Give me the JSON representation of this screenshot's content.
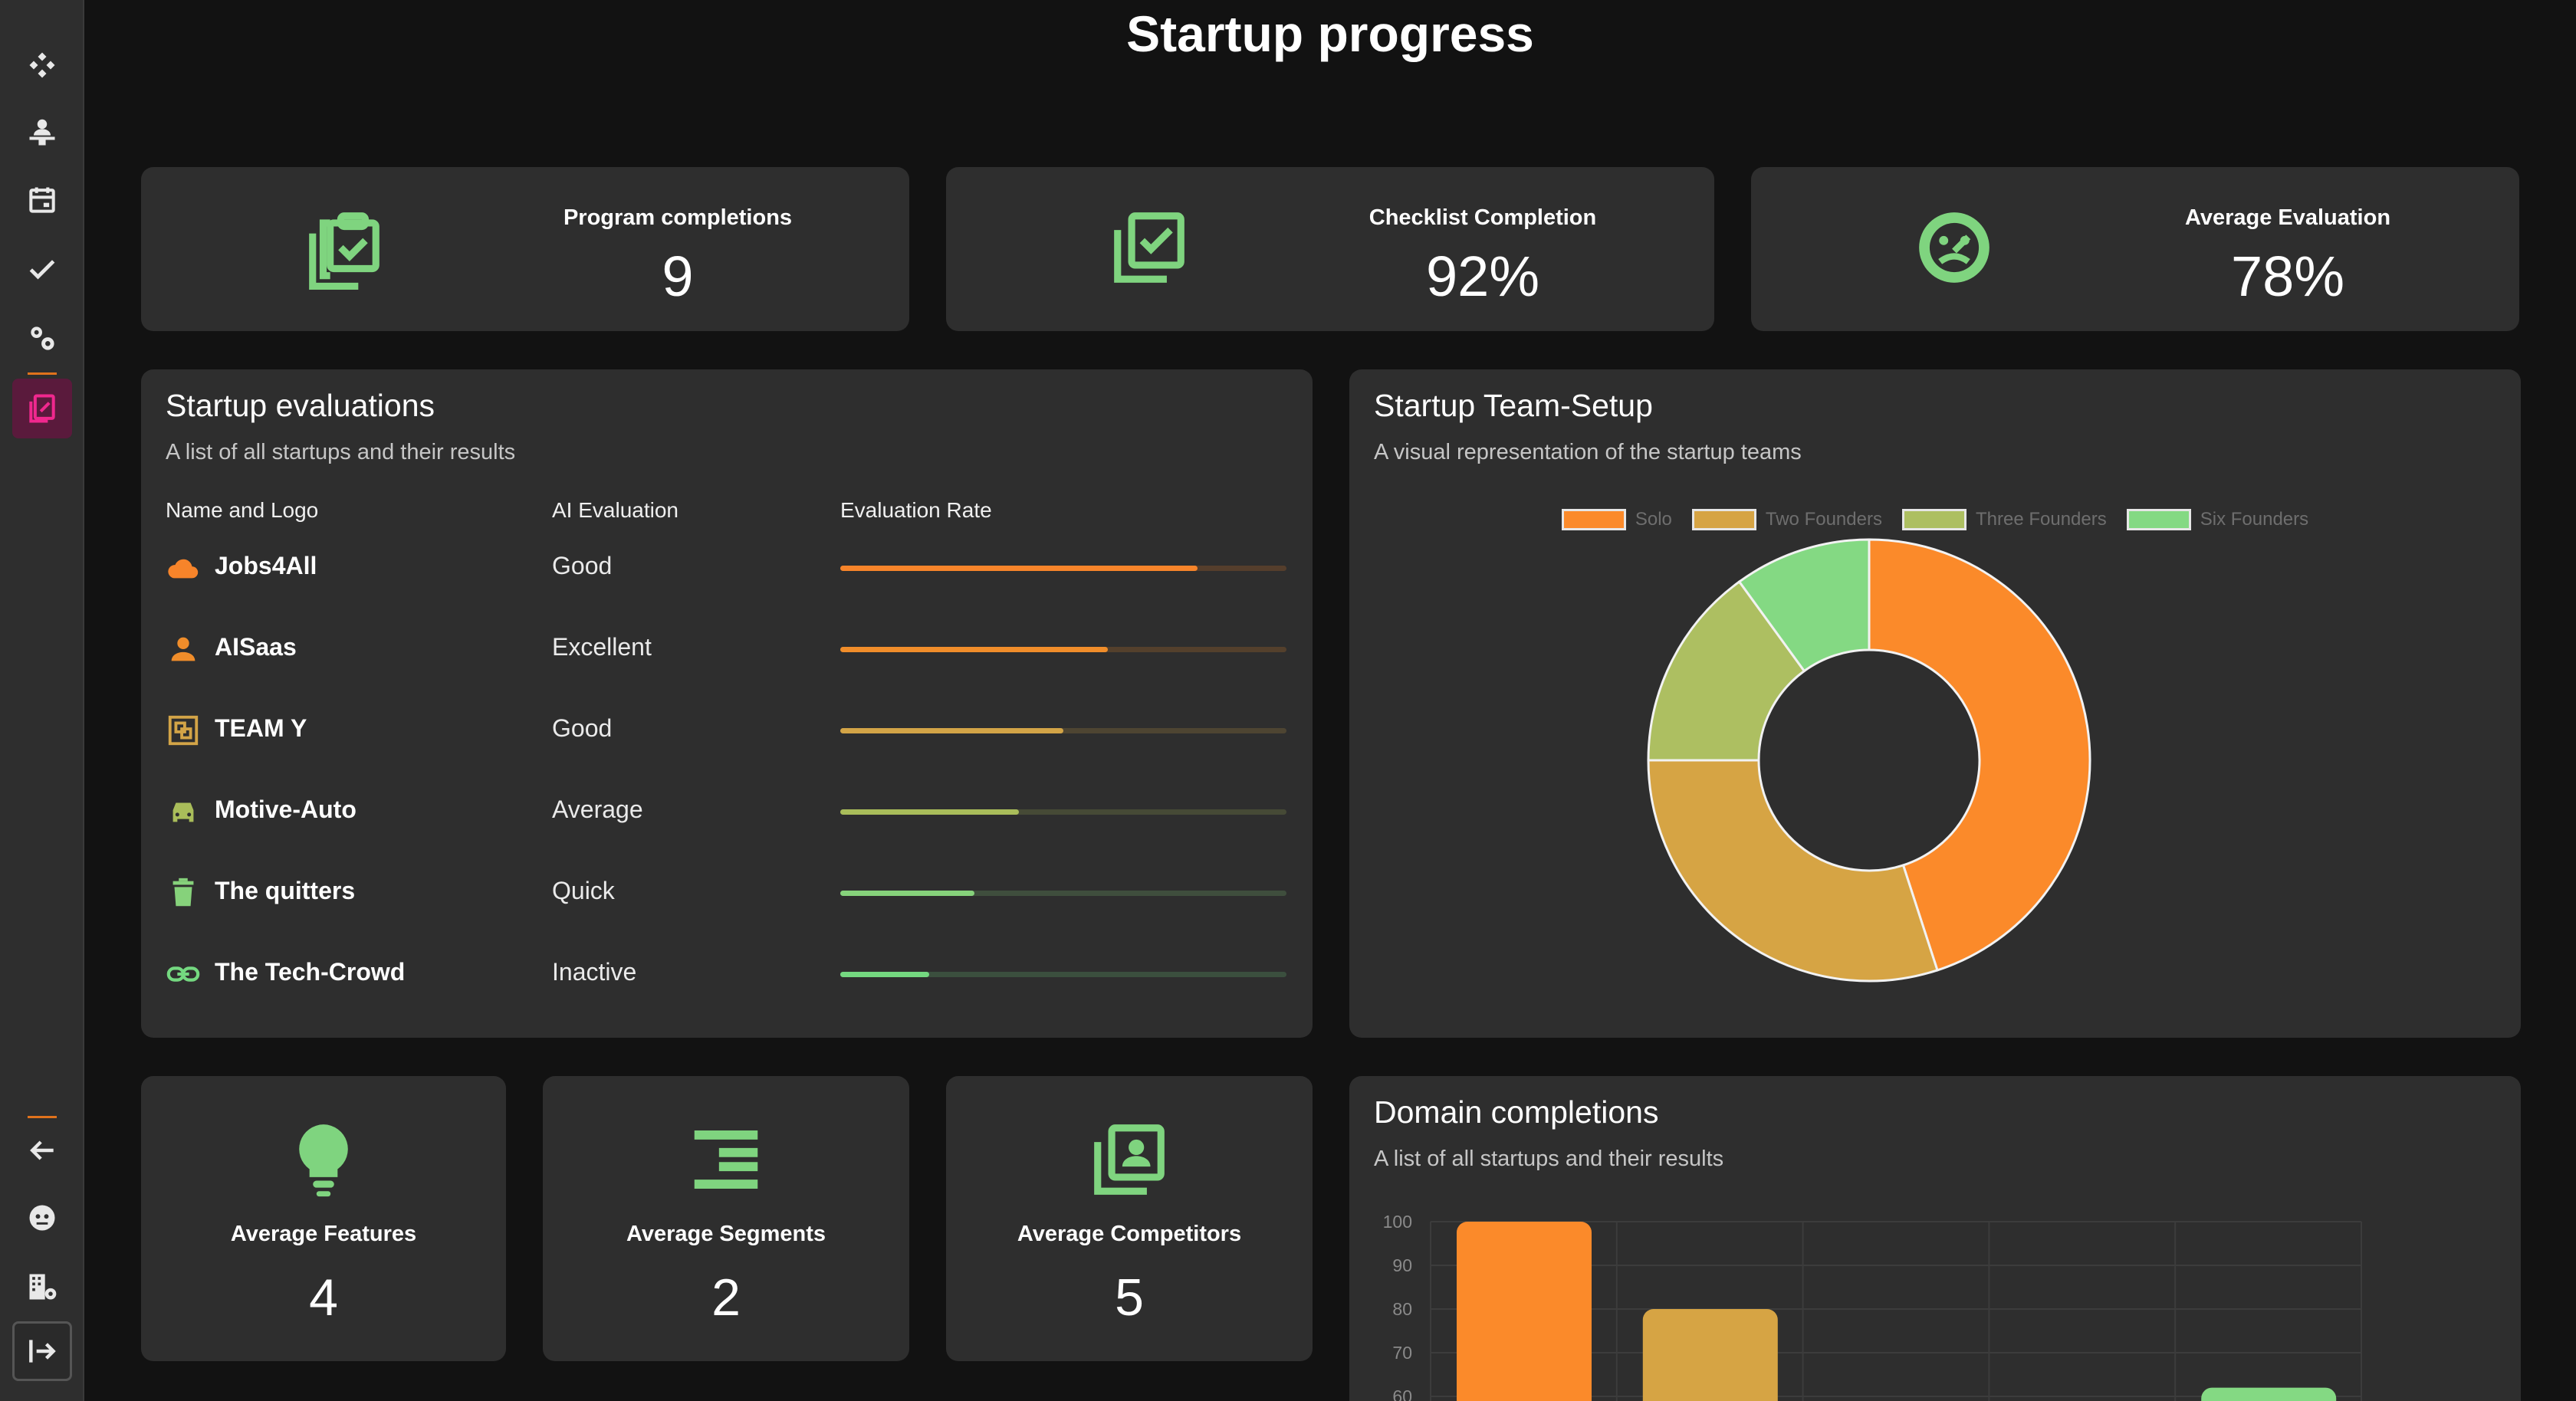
{
  "page": {
    "title": "Startup progress"
  },
  "sidebar": {
    "top_items": [
      {
        "icon": "diamonds-icon"
      },
      {
        "icon": "person-podium-icon"
      },
      {
        "icon": "calendar-icon"
      },
      {
        "icon": "checkmark-icon"
      },
      {
        "icon": "settings-gears-icon"
      },
      {
        "icon": "edit-document-icon",
        "active": true
      }
    ],
    "bottom_items": [
      {
        "icon": "arrow-left-icon"
      },
      {
        "icon": "face-icon"
      },
      {
        "icon": "building-gear-icon"
      },
      {
        "icon": "logout-icon"
      }
    ],
    "accent_color": "#e0721c",
    "active_color": "#e0288c"
  },
  "stats": [
    {
      "label": "Program completions",
      "value": "9",
      "icon": "clipboard-check-icon"
    },
    {
      "label": "Checklist Completion",
      "value": "92%",
      "icon": "checkbox-stack-icon"
    },
    {
      "label": "Average Evaluation",
      "value": "78%",
      "icon": "gauge-face-icon"
    }
  ],
  "evaluations": {
    "title": "Startup evaluations",
    "subtitle": "A list of all startups and their results",
    "columns": [
      "Name and Logo",
      "AI Evaluation",
      "Evaluation Rate"
    ],
    "rows": [
      {
        "name": "Jobs4All",
        "evaluation": "Good",
        "rate": 0.8,
        "color": "#f7842a",
        "icon": "cloud-icon"
      },
      {
        "name": "AISaas",
        "evaluation": "Excellent",
        "rate": 0.6,
        "color": "#f08d2a",
        "icon": "person-icon"
      },
      {
        "name": "TEAM Y",
        "evaluation": "Good",
        "rate": 0.5,
        "color": "#d3a447",
        "icon": "frames-icon"
      },
      {
        "name": "Motive-Auto",
        "evaluation": "Average",
        "rate": 0.4,
        "color": "#a9bd5a",
        "icon": "car-icon"
      },
      {
        "name": "The quitters",
        "evaluation": "Quick",
        "rate": 0.3,
        "color": "#86d27b",
        "icon": "trash-icon"
      },
      {
        "name": "The Tech-Crowd",
        "evaluation": "Inactive",
        "rate": 0.2,
        "color": "#74d880",
        "icon": "link-icon"
      }
    ]
  },
  "team_setup": {
    "title": "Startup Team-Setup",
    "subtitle": "A visual representation of the startup teams",
    "chart_data": {
      "type": "pie",
      "categories": [
        "Solo",
        "Two Founders",
        "Three Founders",
        "Six Founders"
      ],
      "values": [
        45,
        30,
        15,
        10
      ],
      "colors": [
        "#fb8a2a",
        "#d6a444",
        "#adbf61",
        "#84d983"
      ]
    }
  },
  "mini_stats": [
    {
      "label": "Average Features",
      "value": "4",
      "icon": "lightbulb-icon"
    },
    {
      "label": "Average Segments",
      "value": "2",
      "icon": "segments-lines-icon"
    },
    {
      "label": "Average Competitors",
      "value": "5",
      "icon": "contacts-stack-icon"
    }
  ],
  "domain_completions": {
    "title": "Domain completions",
    "subtitle": "A list of all startups and their results",
    "chart_data": {
      "type": "bar",
      "y_ticks": [
        "100",
        "90",
        "80",
        "70",
        "60"
      ],
      "ylim": [
        60,
        100
      ],
      "values": [
        100,
        80,
        null,
        null,
        62
      ],
      "colors": [
        "#fb8a2a",
        "#d6a444",
        "#adbf61",
        "#a9bd5a",
        "#84d983"
      ]
    }
  }
}
